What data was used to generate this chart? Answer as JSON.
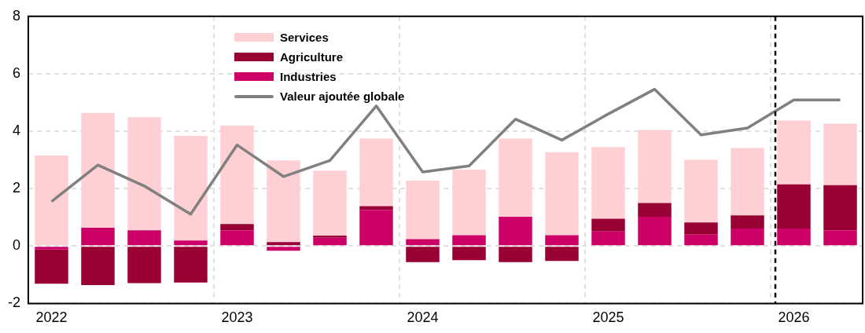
{
  "chart_data": {
    "type": "bar",
    "stacked": true,
    "categories": [
      "2022",
      null,
      null,
      null,
      "2023",
      null,
      null,
      null,
      "2024",
      null,
      null,
      null,
      "2025",
      null,
      null,
      null,
      "2026",
      null
    ],
    "series": [
      {
        "name": "Industries",
        "color": "#cc0066",
        "values": [
          -0.12,
          0.64,
          0.55,
          0.19,
          0.55,
          -0.16,
          0.29,
          1.26,
          0.24,
          0.38,
          1.02,
          0.38,
          0.51,
          1.02,
          0.4,
          0.61,
          0.61,
          0.55
        ]
      },
      {
        "name": "Agriculture",
        "color": "#990033",
        "values": [
          -1.19,
          -1.36,
          -1.29,
          -1.27,
          0.22,
          0.14,
          0.07,
          0.13,
          -0.56,
          -0.49,
          -0.56,
          -0.52,
          0.44,
          0.48,
          0.42,
          0.46,
          1.54,
          1.57
        ]
      },
      {
        "name": "Services",
        "color": "#ffd0d3",
        "values": [
          3.15,
          4.0,
          3.94,
          3.65,
          3.43,
          2.84,
          2.27,
          2.35,
          2.04,
          2.28,
          2.72,
          2.89,
          2.5,
          2.54,
          2.18,
          2.34,
          2.22,
          2.14
        ]
      },
      {
        "name": "Valeur ajoutée globale",
        "type": "line",
        "color": "#808080",
        "values": [
          1.55,
          2.82,
          2.09,
          1.11,
          3.52,
          2.42,
          2.98,
          4.88,
          2.58,
          2.79,
          4.42,
          3.69,
          4.6,
          5.46,
          3.87,
          4.11,
          5.09,
          5.09
        ]
      }
    ],
    "ylim": [
      -2,
      8
    ],
    "yticks": [
      -2,
      0,
      2,
      4,
      6,
      8
    ],
    "grid": true,
    "legend": "top",
    "marker": "none",
    "ref_lines": [
      {
        "axis": "x",
        "value": "2026",
        "color": "#000000",
        "line_style": "dashed"
      }
    ]
  }
}
